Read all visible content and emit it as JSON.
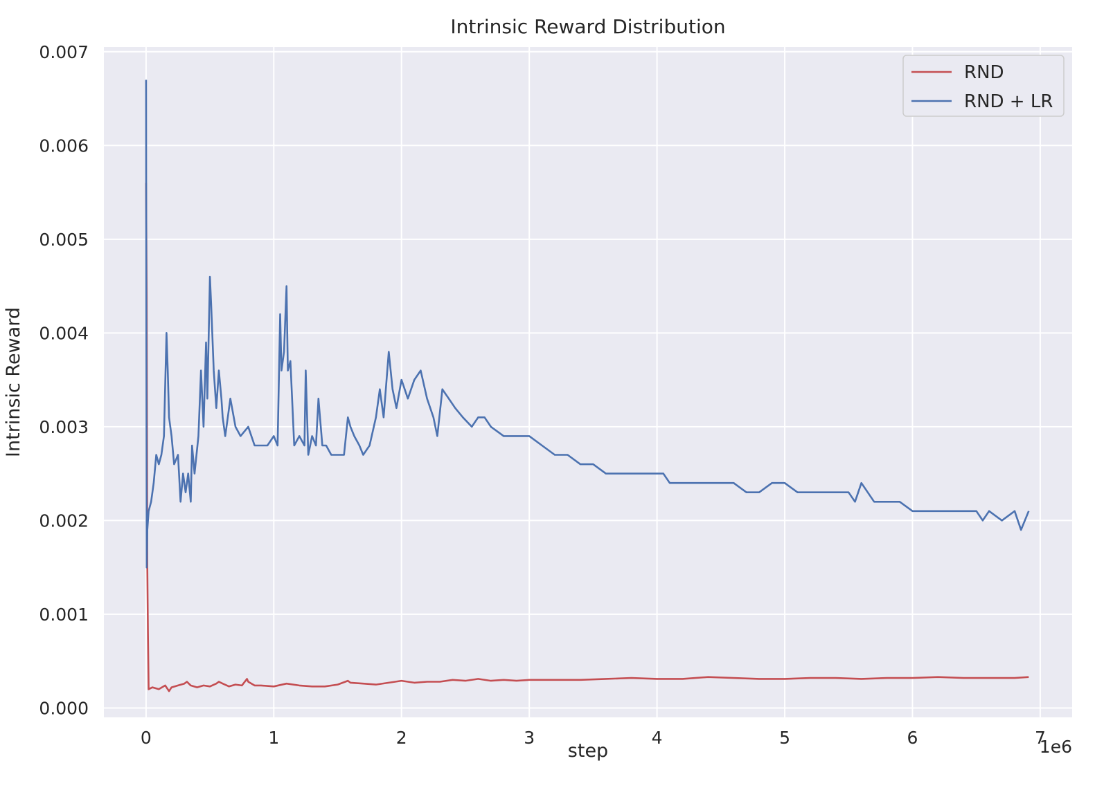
{
  "chart_data": {
    "type": "line",
    "title": "Intrinsic Reward Distribution",
    "xlabel": "step",
    "ylabel": "Intrinsic Reward",
    "x_offset_label": "1e6",
    "xlim": [
      -0.33,
      7.25
    ],
    "ylim": [
      -0.0001,
      0.00705
    ],
    "xticks": [
      0,
      1,
      2,
      3,
      4,
      5,
      6,
      7
    ],
    "xtick_labels": [
      "0",
      "1",
      "2",
      "3",
      "4",
      "5",
      "6",
      "7"
    ],
    "yticks": [
      0.0,
      0.001,
      0.002,
      0.003,
      0.004,
      0.005,
      0.006,
      0.007
    ],
    "ytick_labels": [
      "0.000",
      "0.001",
      "0.002",
      "0.003",
      "0.004",
      "0.005",
      "0.006",
      "0.007"
    ],
    "grid": true,
    "legend": "upper right",
    "series": [
      {
        "name": "RND",
        "color": "#c44e52",
        "x": [
          0.0,
          0.005,
          0.01,
          0.015,
          0.02,
          0.05,
          0.1,
          0.15,
          0.18,
          0.2,
          0.25,
          0.3,
          0.32,
          0.35,
          0.4,
          0.45,
          0.5,
          0.55,
          0.57,
          0.6,
          0.65,
          0.7,
          0.75,
          0.79,
          0.8,
          0.85,
          0.9,
          1.0,
          1.1,
          1.2,
          1.3,
          1.4,
          1.5,
          1.58,
          1.6,
          1.7,
          1.8,
          1.9,
          2.0,
          2.1,
          2.2,
          2.3,
          2.4,
          2.5,
          2.6,
          2.7,
          2.8,
          2.9,
          3.0,
          3.2,
          3.4,
          3.6,
          3.8,
          4.0,
          4.2,
          4.4,
          4.6,
          4.8,
          5.0,
          5.2,
          5.4,
          5.6,
          5.8,
          6.0,
          6.2,
          6.4,
          6.6,
          6.8,
          6.91
        ],
        "y": [
          0.0056,
          0.0044,
          0.0015,
          0.0008,
          0.0002,
          0.00022,
          0.0002,
          0.00024,
          0.00018,
          0.00022,
          0.00024,
          0.00026,
          0.00028,
          0.00024,
          0.00022,
          0.00024,
          0.00023,
          0.00026,
          0.00028,
          0.00026,
          0.00023,
          0.00025,
          0.00024,
          0.00031,
          0.00028,
          0.00024,
          0.00024,
          0.00023,
          0.00026,
          0.00024,
          0.00023,
          0.00023,
          0.00025,
          0.00029,
          0.00027,
          0.00026,
          0.00025,
          0.00027,
          0.00029,
          0.00027,
          0.00028,
          0.00028,
          0.0003,
          0.00029,
          0.00031,
          0.00029,
          0.0003,
          0.00029,
          0.0003,
          0.0003,
          0.0003,
          0.00031,
          0.00032,
          0.00031,
          0.00031,
          0.00033,
          0.00032,
          0.00031,
          0.00031,
          0.00032,
          0.00032,
          0.00031,
          0.00032,
          0.00032,
          0.00033,
          0.00032,
          0.00032,
          0.00032,
          0.00033
        ]
      },
      {
        "name": "RND + LR",
        "color": "#4c72b0",
        "x": [
          0.0,
          0.002,
          0.005,
          0.01,
          0.02,
          0.04,
          0.06,
          0.08,
          0.1,
          0.12,
          0.14,
          0.16,
          0.17,
          0.18,
          0.2,
          0.22,
          0.25,
          0.27,
          0.29,
          0.31,
          0.33,
          0.35,
          0.36,
          0.38,
          0.41,
          0.43,
          0.45,
          0.47,
          0.48,
          0.5,
          0.51,
          0.53,
          0.55,
          0.57,
          0.59,
          0.6,
          0.62,
          0.66,
          0.7,
          0.74,
          0.8,
          0.85,
          0.9,
          0.95,
          1.0,
          1.03,
          1.05,
          1.06,
          1.08,
          1.1,
          1.11,
          1.13,
          1.16,
          1.2,
          1.24,
          1.25,
          1.27,
          1.3,
          1.33,
          1.35,
          1.38,
          1.41,
          1.45,
          1.5,
          1.55,
          1.58,
          1.6,
          1.63,
          1.67,
          1.7,
          1.75,
          1.8,
          1.83,
          1.86,
          1.9,
          1.93,
          1.96,
          2.0,
          2.05,
          2.1,
          2.15,
          2.2,
          2.25,
          2.28,
          2.32,
          2.37,
          2.42,
          2.48,
          2.55,
          2.6,
          2.65,
          2.7,
          2.8,
          2.9,
          3.0,
          3.1,
          3.2,
          3.3,
          3.4,
          3.5,
          3.6,
          3.7,
          3.8,
          3.9,
          4.0,
          4.05,
          4.1,
          4.2,
          4.3,
          4.4,
          4.5,
          4.6,
          4.7,
          4.8,
          4.9,
          5.0,
          5.1,
          5.2,
          5.3,
          5.4,
          5.5,
          5.55,
          5.6,
          5.7,
          5.8,
          5.9,
          6.0,
          6.1,
          6.2,
          6.3,
          6.4,
          6.5,
          6.55,
          6.6,
          6.7,
          6.8,
          6.85,
          6.91
        ],
        "y": [
          0.0067,
          0.0045,
          0.0015,
          0.0019,
          0.0021,
          0.0022,
          0.0024,
          0.0027,
          0.0026,
          0.0027,
          0.0029,
          0.004,
          0.0036,
          0.0031,
          0.0029,
          0.0026,
          0.0027,
          0.0022,
          0.0025,
          0.0023,
          0.0025,
          0.0022,
          0.0028,
          0.0025,
          0.0029,
          0.0036,
          0.003,
          0.0039,
          0.0033,
          0.0046,
          0.0043,
          0.0036,
          0.0032,
          0.0036,
          0.0033,
          0.0031,
          0.0029,
          0.0033,
          0.003,
          0.0029,
          0.003,
          0.0028,
          0.0028,
          0.0028,
          0.0029,
          0.0028,
          0.0042,
          0.0036,
          0.0038,
          0.0045,
          0.0036,
          0.0037,
          0.0028,
          0.0029,
          0.0028,
          0.0036,
          0.0027,
          0.0029,
          0.0028,
          0.0033,
          0.0028,
          0.0028,
          0.0027,
          0.0027,
          0.0027,
          0.0031,
          0.003,
          0.0029,
          0.0028,
          0.0027,
          0.0028,
          0.0031,
          0.0034,
          0.0031,
          0.0038,
          0.0034,
          0.0032,
          0.0035,
          0.0033,
          0.0035,
          0.0036,
          0.0033,
          0.0031,
          0.0029,
          0.0034,
          0.0033,
          0.0032,
          0.0031,
          0.003,
          0.0031,
          0.0031,
          0.003,
          0.0029,
          0.0029,
          0.0029,
          0.0028,
          0.0027,
          0.0027,
          0.0026,
          0.0026,
          0.0025,
          0.0025,
          0.0025,
          0.0025,
          0.0025,
          0.0025,
          0.0024,
          0.0024,
          0.0024,
          0.0024,
          0.0024,
          0.0024,
          0.0023,
          0.0023,
          0.0024,
          0.0024,
          0.0023,
          0.0023,
          0.0023,
          0.0023,
          0.0023,
          0.0022,
          0.0024,
          0.0022,
          0.0022,
          0.0022,
          0.0021,
          0.0021,
          0.0021,
          0.0021,
          0.0021,
          0.0021,
          0.002,
          0.0021,
          0.002,
          0.0021,
          0.0019,
          0.0021
        ]
      }
    ]
  }
}
